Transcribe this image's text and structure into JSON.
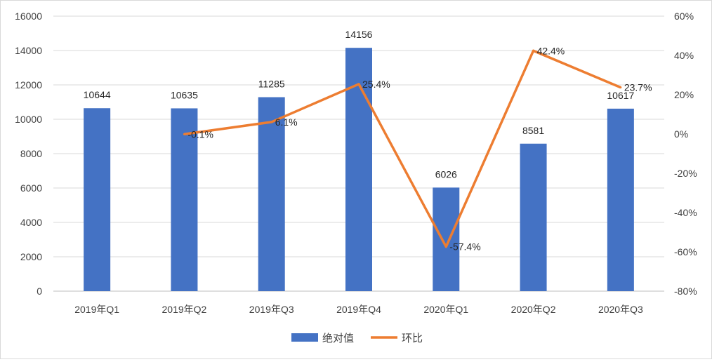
{
  "chart_data": {
    "type": "bar",
    "categories": [
      "2019年Q1",
      "2019年Q2",
      "2019年Q3",
      "2019年Q4",
      "2020年Q1",
      "2020年Q2",
      "2020年Q3"
    ],
    "series": [
      {
        "name": "绝对值",
        "type": "bar",
        "axis": "left",
        "values": [
          10644,
          10635,
          11285,
          14156,
          6026,
          8581,
          10617
        ],
        "labels": [
          "10644",
          "10635",
          "11285",
          "14156",
          "6026",
          "8581",
          "10617"
        ]
      },
      {
        "name": "环比",
        "type": "line",
        "axis": "right",
        "values": [
          null,
          -0.1,
          6.1,
          25.4,
          -57.4,
          42.4,
          23.7
        ],
        "labels": [
          "",
          "-0.1%",
          "6.1%",
          "25.4%",
          "-57.4%",
          "42.4%",
          "23.7%"
        ]
      }
    ],
    "y_left": {
      "lim": [
        0,
        16000
      ],
      "ticks": [
        "0",
        "2000",
        "4000",
        "6000",
        "8000",
        "10000",
        "12000",
        "14000",
        "16000"
      ]
    },
    "y_right": {
      "lim": [
        -80,
        60
      ],
      "unit": "%",
      "ticks": [
        "-80%",
        "-60%",
        "-40%",
        "-20%",
        "0%",
        "20%",
        "40%",
        "60%"
      ]
    },
    "grid": true,
    "legend": "bottom",
    "colors": {
      "bar": "#4472C4",
      "line": "#ED7D31",
      "grid": "#d9d9d9",
      "axis": "#bfbfbf"
    }
  }
}
